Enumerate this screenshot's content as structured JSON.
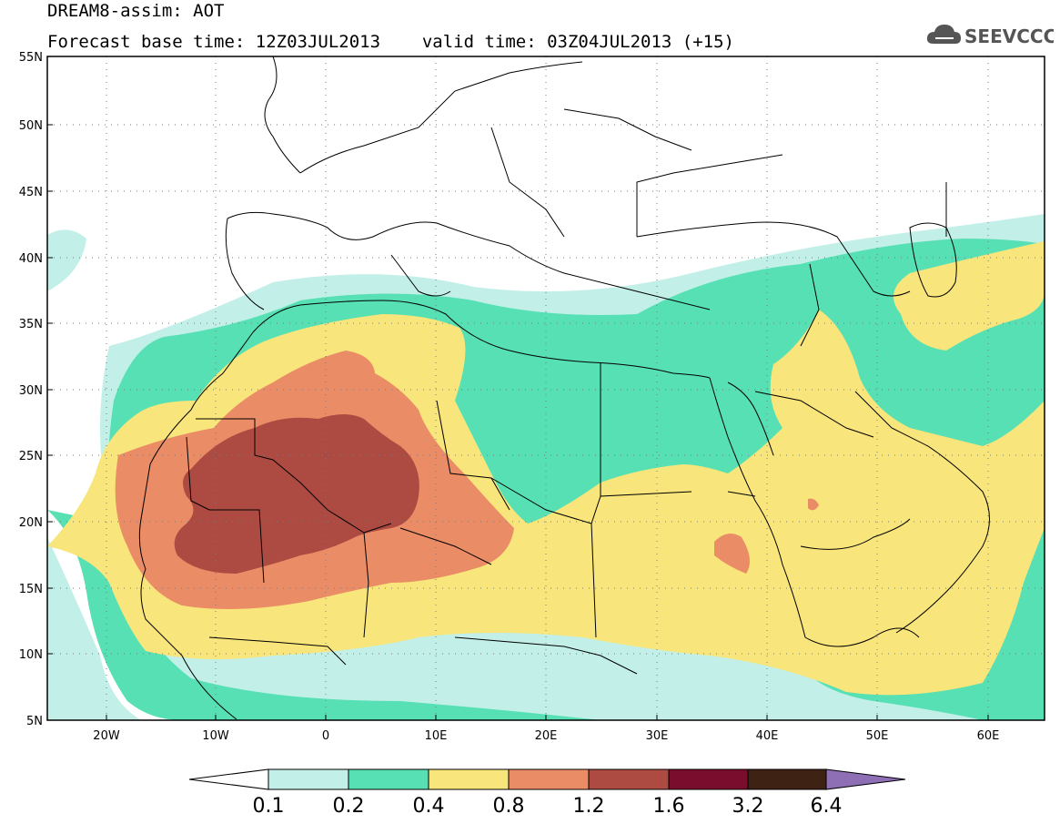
{
  "header": {
    "title_line1": "DREAM8-assim: AOT",
    "base_time": "Forecast base time: 12Z03JUL2013",
    "valid_time": "valid time: 03Z04JUL2013 (+15)"
  },
  "brand": {
    "name": "SEEVCCC",
    "icon": "cloud-logo-icon"
  },
  "map": {
    "variable": "AOT",
    "projection": "lat-lon",
    "lon_range": [
      -25,
      65
    ],
    "lat_range": [
      5,
      55
    ],
    "lat_ticks": [
      {
        "value": 55,
        "label": "55N"
      },
      {
        "value": 50,
        "label": "50N"
      },
      {
        "value": 45,
        "label": "45N"
      },
      {
        "value": 40,
        "label": "40N"
      },
      {
        "value": 35,
        "label": "35N"
      },
      {
        "value": 30,
        "label": "30N"
      },
      {
        "value": 25,
        "label": "25N"
      },
      {
        "value": 20,
        "label": "20N"
      },
      {
        "value": 15,
        "label": "15N"
      },
      {
        "value": 10,
        "label": "10N"
      },
      {
        "value": 5,
        "label": "5N"
      }
    ],
    "lon_ticks": [
      {
        "value": -20,
        "label": "20W"
      },
      {
        "value": -10,
        "label": "10W"
      },
      {
        "value": 0,
        "label": "0"
      },
      {
        "value": 10,
        "label": "10E"
      },
      {
        "value": 20,
        "label": "20E"
      },
      {
        "value": 30,
        "label": "30E"
      },
      {
        "value": 40,
        "label": "40E"
      },
      {
        "value": 50,
        "label": "50E"
      },
      {
        "value": 60,
        "label": "60E"
      }
    ],
    "gridlines": "dotted",
    "max_region": "western Sahara (Mali / Mauritania / Algeria), AOT 1.2–1.6"
  },
  "colorbar": {
    "levels": [
      "0.1",
      "0.2",
      "0.4",
      "0.8",
      "1.2",
      "1.6",
      "3.2",
      "6.4"
    ],
    "colors": {
      "below": "#ffffff",
      "c1": "#c2f0e8",
      "c2": "#57e0b4",
      "c3": "#f8e57b",
      "c4": "#ea8c66",
      "c5": "#ad4b42",
      "c6": "#7a0d2d",
      "c7": "#3e2214",
      "above": "#8e6fb5"
    }
  }
}
